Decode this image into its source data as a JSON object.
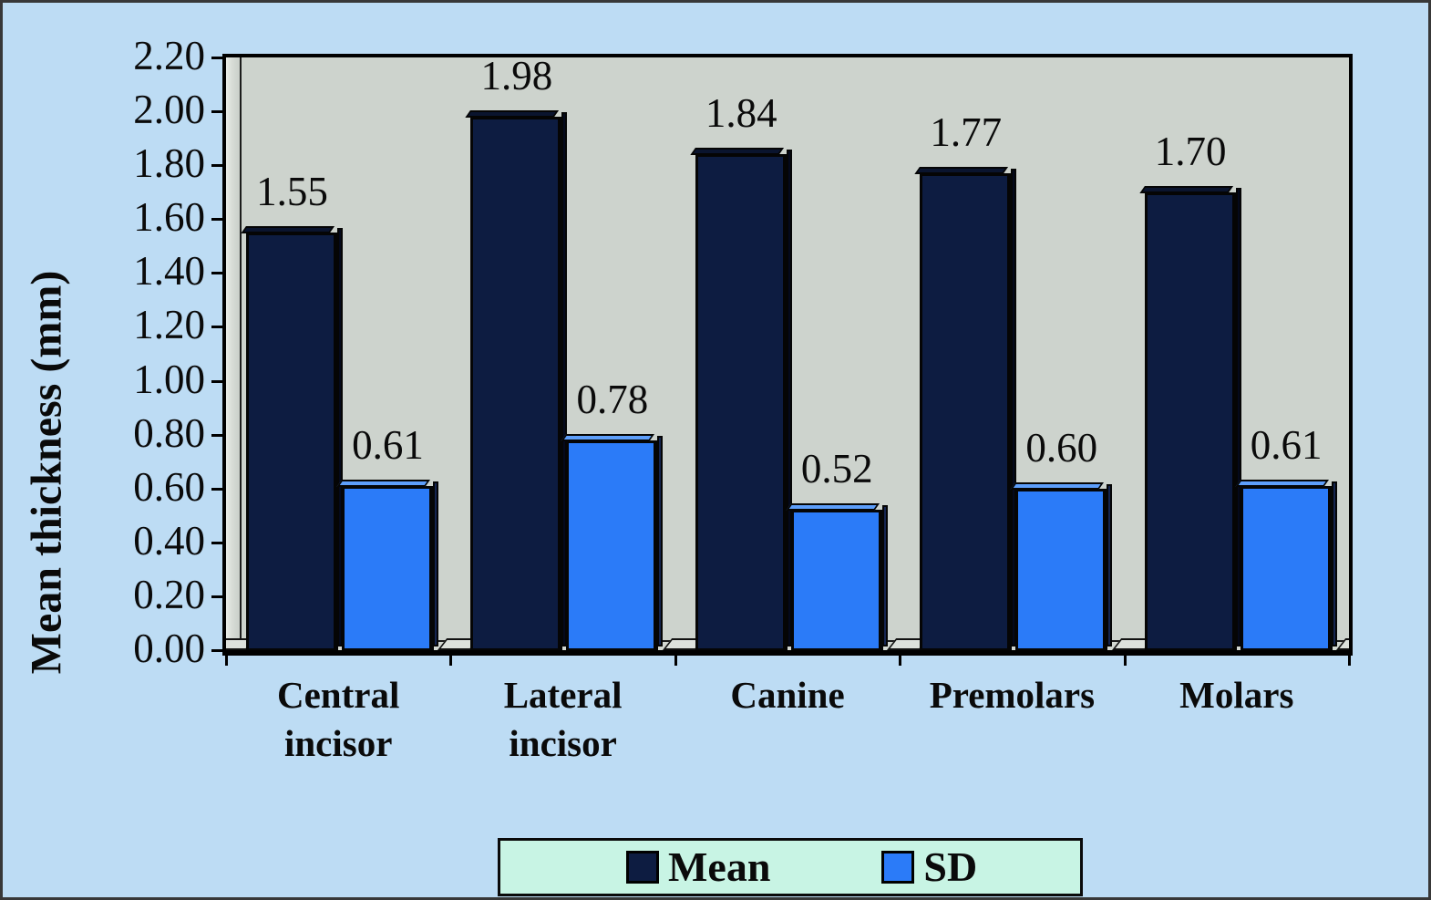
{
  "chart_data": {
    "type": "bar",
    "title": "",
    "xlabel": "",
    "ylabel": "Mean thickness (mm)",
    "categories": [
      "Central incisor",
      "Lateral incisor",
      "Canine",
      "Premolars",
      "Molars"
    ],
    "series": [
      {
        "name": "Mean",
        "values": [
          1.55,
          1.98,
          1.84,
          1.77,
          1.7
        ],
        "labels": [
          "1.55",
          "1.98",
          "1.84",
          "1.77",
          "1.70"
        ],
        "color": "#0d1c41"
      },
      {
        "name": "SD",
        "values": [
          0.61,
          0.78,
          0.52,
          0.6,
          0.61
        ],
        "labels": [
          "0.61",
          "0.78",
          "0.52",
          "0.60",
          "0.61"
        ],
        "color": "#2b7bf8"
      }
    ],
    "ylim": [
      0.0,
      2.2
    ],
    "ytick_step": 0.2,
    "ytick_labels": [
      "0.00",
      "0.20",
      "0.40",
      "0.60",
      "0.80",
      "1.00",
      "1.20",
      "1.40",
      "1.60",
      "1.80",
      "2.00",
      "2.20"
    ],
    "grid": false,
    "legend_position": "bottom-center",
    "bar_style": "3d"
  },
  "legend": {
    "items": [
      {
        "label": "Mean",
        "color": "#0d1c41"
      },
      {
        "label": "SD",
        "color": "#2b7bf8"
      }
    ]
  },
  "colors": {
    "page_bg": "#bddcf4",
    "plot_bg": "#cdd3cd",
    "mean": "#0d1c41",
    "mean_top": "#0a142e",
    "mean_side": "#04091c",
    "sd": "#2b7bf8",
    "sd_top": "#5d9efa",
    "sd_side": "#152550",
    "legend_bg": "#c8f4e4",
    "axis": "#000000"
  }
}
